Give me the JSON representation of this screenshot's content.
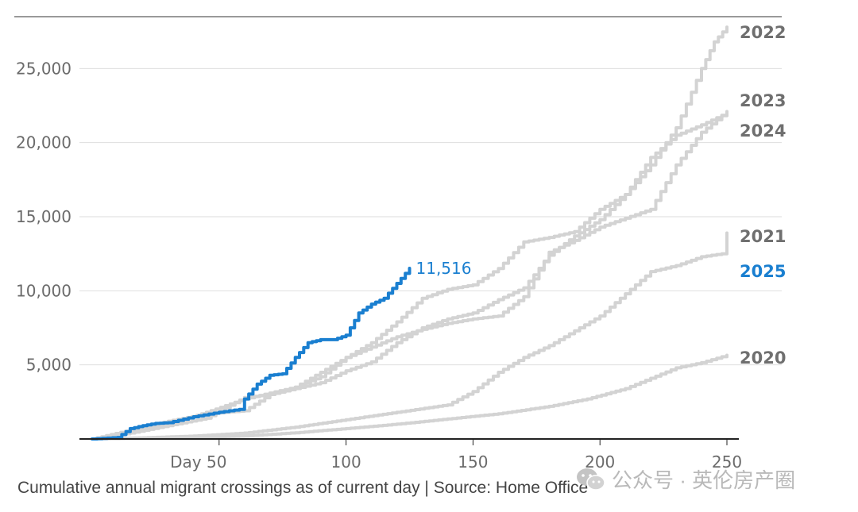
{
  "chart_data": {
    "type": "line",
    "caption": "Cumulative annual migrant crossings as of current day | Source: Home Office",
    "xlim": [
      0,
      258
    ],
    "ylim": [
      0,
      28500
    ],
    "x_ticks": [
      {
        "value": 50,
        "label": "Day 50"
      },
      {
        "value": 100,
        "label": "100"
      },
      {
        "value": 150,
        "label": "150"
      },
      {
        "value": 200,
        "label": "200"
      },
      {
        "value": 250,
        "label": "250"
      }
    ],
    "y_ticks": [
      {
        "value": 5000,
        "label": "5,000"
      },
      {
        "value": 10000,
        "label": "10,000"
      },
      {
        "value": 15000,
        "label": "15,000"
      },
      {
        "value": 20000,
        "label": "20,000"
      },
      {
        "value": 25000,
        "label": "25,000"
      }
    ],
    "grid": true,
    "end_value_label": "11,516",
    "colors": {
      "highlight": "#1a7fd0",
      "other": "#d3d3d3",
      "grid": "#dedede",
      "axis": "#222222"
    },
    "series": [
      {
        "name": "2020",
        "highlight": false,
        "x": [
          0,
          20,
          40,
          60,
          80,
          100,
          120,
          140,
          160,
          180,
          195,
          210,
          220,
          230,
          240,
          250
        ],
        "y": [
          0,
          40,
          100,
          200,
          420,
          700,
          1000,
          1350,
          1700,
          2200,
          2700,
          3400,
          4100,
          4800,
          5150,
          5650
        ]
      },
      {
        "name": "2021",
        "highlight": false,
        "x": [
          0,
          20,
          40,
          60,
          80,
          100,
          120,
          140,
          150,
          160,
          170,
          180,
          190,
          200,
          210,
          220,
          230,
          240,
          248,
          250
        ],
        "y": [
          0,
          80,
          200,
          400,
          800,
          1300,
          1800,
          2300,
          3200,
          4500,
          5500,
          6300,
          7300,
          8300,
          9800,
          11300,
          11700,
          12300,
          12500,
          13900
        ]
      },
      {
        "name": "2022",
        "highlight": false,
        "x": [
          0,
          15,
          30,
          45,
          60,
          70,
          80,
          90,
          100,
          110,
          120,
          130,
          140,
          150,
          160,
          170,
          180,
          190,
          200,
          210,
          220,
          230,
          240,
          245,
          250
        ],
        "y": [
          0,
          600,
          1200,
          1700,
          1900,
          3000,
          3500,
          4200,
          5500,
          6500,
          7900,
          9500,
          10100,
          10400,
          11500,
          13300,
          13600,
          14000,
          15500,
          16500,
          18500,
          21000,
          25000,
          26800,
          27800
        ]
      },
      {
        "name": "2023",
        "highlight": false,
        "x": [
          0,
          15,
          30,
          45,
          60,
          70,
          80,
          90,
          100,
          110,
          120,
          130,
          140,
          150,
          160,
          170,
          180,
          190,
          200,
          210,
          220,
          230,
          240,
          250
        ],
        "y": [
          0,
          400,
          900,
          1400,
          2800,
          3000,
          3400,
          3800,
          4600,
          5200,
          6500,
          7500,
          8100,
          8500,
          9400,
          10200,
          12400,
          13700,
          14800,
          16500,
          19000,
          20500,
          21200,
          22000
        ]
      },
      {
        "name": "2024",
        "highlight": false,
        "x": [
          0,
          15,
          30,
          45,
          60,
          70,
          80,
          90,
          100,
          110,
          120,
          130,
          140,
          150,
          160,
          170,
          180,
          190,
          200,
          210,
          220,
          230,
          240,
          250
        ],
        "y": [
          0,
          500,
          1000,
          1800,
          2700,
          3100,
          3500,
          4500,
          5500,
          6200,
          6900,
          7400,
          7800,
          8100,
          8300,
          9600,
          12600,
          13400,
          14300,
          14900,
          15500,
          18500,
          20700,
          22100
        ]
      },
      {
        "name": "2025",
        "highlight": true,
        "x": [
          0,
          10,
          15,
          20,
          25,
          30,
          40,
          50,
          58,
          60,
          65,
          70,
          75,
          80,
          85,
          90,
          95,
          100,
          105,
          110,
          115,
          120,
          125
        ],
        "y": [
          0,
          100,
          700,
          900,
          1050,
          1100,
          1500,
          1800,
          2000,
          2700,
          3700,
          4300,
          4400,
          5500,
          6500,
          6700,
          6700,
          7000,
          8500,
          9100,
          9500,
          10500,
          11516
        ]
      }
    ]
  },
  "watermark": {
    "text": "公众号 · 英伦房产圈",
    "icon": "wechat-icon"
  }
}
